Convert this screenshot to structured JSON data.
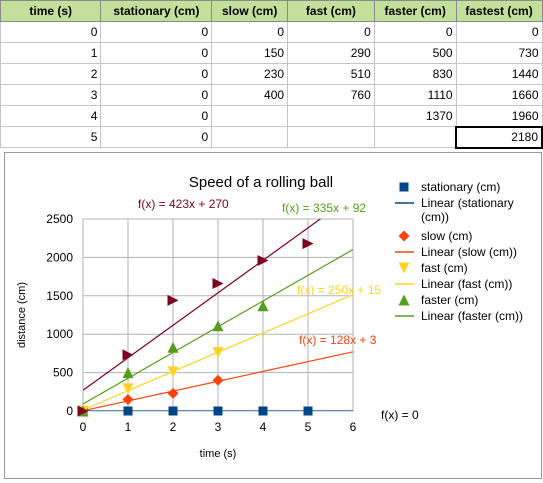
{
  "sheet": {
    "headers": [
      "time (s)",
      "stationary (cm)",
      "slow (cm)",
      "fast (cm)",
      "faster (cm)",
      "fastest (cm)"
    ],
    "rows": [
      [
        "0",
        "0",
        "0",
        "0",
        "0",
        "0"
      ],
      [
        "1",
        "0",
        "150",
        "290",
        "500",
        "730"
      ],
      [
        "2",
        "0",
        "230",
        "510",
        "830",
        "1440"
      ],
      [
        "3",
        "0",
        "400",
        "760",
        "1110",
        "1660"
      ],
      [
        "4",
        "0",
        "",
        "",
        "1370",
        "1960"
      ],
      [
        "5",
        "0",
        "",
        "",
        "",
        "2180"
      ]
    ]
  },
  "chart_data": {
    "type": "scatter",
    "title": "Speed of a rolling ball",
    "xlabel": "time (s)",
    "ylabel": "distance (cm)",
    "xlim": [
      0,
      6
    ],
    "ylim": [
      0,
      2500
    ],
    "x_ticks": [
      "0",
      "1",
      "2",
      "3",
      "4",
      "5",
      "6"
    ],
    "y_ticks": [
      "0",
      "500",
      "1000",
      "1500",
      "2000",
      "2500"
    ],
    "grid": true,
    "legend_position": "right",
    "series": [
      {
        "name": "stationary (cm)",
        "marker": "square",
        "color": "#004586",
        "points": [
          [
            0,
            0
          ],
          [
            1,
            0
          ],
          [
            2,
            0
          ],
          [
            3,
            0
          ],
          [
            4,
            0
          ],
          [
            5,
            0
          ]
        ],
        "trendline": {
          "name": "Linear (stationary (cm))",
          "slope": 0,
          "intercept": 0,
          "equation": "f(x) = 0",
          "color": "#004586"
        }
      },
      {
        "name": "slow (cm)",
        "marker": "diamond",
        "color": "#ff420e",
        "points": [
          [
            0,
            0
          ],
          [
            1,
            150
          ],
          [
            2,
            230
          ],
          [
            3,
            400
          ]
        ],
        "trendline": {
          "name": "Linear (slow (cm))",
          "slope": 128,
          "intercept": 3,
          "equation": "f(x) = 128x + 3",
          "color": "#ff420e"
        }
      },
      {
        "name": "fast (cm)",
        "marker": "triangle-down",
        "color": "#ffd320",
        "points": [
          [
            0,
            0
          ],
          [
            1,
            290
          ],
          [
            2,
            510
          ],
          [
            3,
            760
          ]
        ],
        "trendline": {
          "name": "Linear (fast (cm))",
          "slope": 250,
          "intercept": 15,
          "equation": "f(x) = 250x + 15",
          "color": "#ffd320"
        }
      },
      {
        "name": "faster (cm)",
        "marker": "triangle-up",
        "color": "#579d1c",
        "points": [
          [
            0,
            0
          ],
          [
            1,
            500
          ],
          [
            2,
            830
          ],
          [
            3,
            1110
          ],
          [
            4,
            1370
          ]
        ],
        "trendline": {
          "name": "Linear (faster (cm))",
          "slope": 335,
          "intercept": 92,
          "equation": "f(x) = 335x + 92",
          "color": "#579d1c"
        }
      },
      {
        "name": "",
        "marker": "triangle-right",
        "color": "#7e0021",
        "points": [
          [
            0,
            0
          ],
          [
            1,
            730
          ],
          [
            2,
            1440
          ],
          [
            3,
            1660
          ],
          [
            4,
            1960
          ],
          [
            5,
            2180
          ]
        ],
        "trendline": {
          "name": "",
          "slope": 423,
          "intercept": 270,
          "equation": "f(x) = 423x + 270",
          "color": "#7e0021"
        }
      }
    ],
    "legend": [
      {
        "label": "stationary (cm)",
        "kind": "marker",
        "marker": "square",
        "color": "#004586"
      },
      {
        "label": "Linear (stationary (cm))",
        "kind": "line",
        "color": "#004586"
      },
      {
        "label": "slow (cm)",
        "kind": "marker",
        "marker": "diamond",
        "color": "#ff420e"
      },
      {
        "label": "Linear (slow (cm))",
        "kind": "line",
        "color": "#ff420e"
      },
      {
        "label": "fast (cm)",
        "kind": "marker",
        "marker": "triangle-down",
        "color": "#ffd320"
      },
      {
        "label": "Linear (fast (cm))",
        "kind": "line",
        "color": "#ffd320"
      },
      {
        "label": "faster (cm)",
        "kind": "marker",
        "marker": "triangle-up",
        "color": "#579d1c"
      },
      {
        "label": "Linear (faster (cm))",
        "kind": "line",
        "color": "#579d1c"
      }
    ]
  }
}
